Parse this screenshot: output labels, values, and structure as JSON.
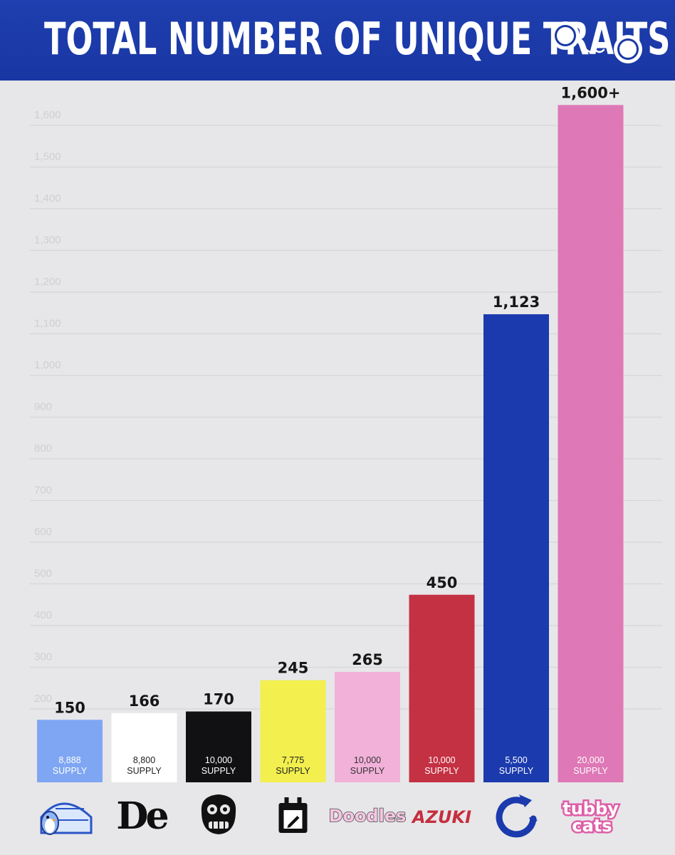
{
  "header": {
    "title": "TOTAL NUMBER OF UNIQUE TRAITS",
    "logo_icon": "tubby-eyes-logo-icon"
  },
  "colors": {
    "header_bg": "#1b39a6",
    "page_bg": "#e7e7e9",
    "gridline": "#d6d6da",
    "tick_text": "#cfcfd3"
  },
  "chart_data": {
    "type": "bar",
    "title": "TOTAL NUMBER OF UNIQUE TRAITS",
    "xlabel": "",
    "ylabel": "",
    "ylim": [
      0,
      1600
    ],
    "yticks": [
      200,
      300,
      400,
      500,
      600,
      700,
      800,
      900,
      1000,
      1100,
      1200,
      1300,
      1400,
      1500,
      1600
    ],
    "ytick_labels": [
      "200",
      "300",
      "400",
      "500",
      "600",
      "700",
      "800",
      "900",
      "1,000",
      "1,100",
      "1,200",
      "1,300",
      "1,400",
      "1,500",
      "1,600"
    ],
    "grid": true,
    "bars": [
      {
        "value": 150,
        "label": "150",
        "supply": "8,888",
        "supply_word": "SUPPLY",
        "color": "#7fa6f2",
        "text_color": "#ffffff",
        "icon": "igloo-penguin-icon"
      },
      {
        "value": 166,
        "label": "166",
        "supply": "8,800",
        "supply_word": "SUPPLY",
        "color": "#ffffff",
        "text_color": "#222222",
        "icon": "de-logo-icon"
      },
      {
        "value": 170,
        "label": "170",
        "supply": "10,000",
        "supply_word": "SUPPLY",
        "color": "#111113",
        "text_color": "#ffffff",
        "icon": "ape-skull-icon"
      },
      {
        "value": 245,
        "label": "245",
        "supply": "7,775",
        "supply_word": "SUPPLY",
        "color": "#f2ef4e",
        "text_color": "#222222",
        "icon": "pen-badge-icon"
      },
      {
        "value": 265,
        "label": "265",
        "supply": "10,000",
        "supply_word": "SUPPLY",
        "color": "#f2b1d9",
        "text_color": "#333333",
        "icon": "doodles-wordmark-icon",
        "icon_text": "Doodles"
      },
      {
        "value": 450,
        "label": "450",
        "supply": "10,000",
        "supply_word": "SUPPLY",
        "color": "#c43142",
        "text_color": "#ffffff",
        "icon": "azuki-wordmark-icon",
        "icon_text": "AZUKI"
      },
      {
        "value": 1123,
        "label": "1,123",
        "supply": "5,500",
        "supply_word": "SUPPLY",
        "color": "#1b3aad",
        "text_color": "#ffffff",
        "icon": "dragon-ring-icon"
      },
      {
        "value": 1625,
        "label": "1,600+",
        "supply": "20,000",
        "supply_word": "SUPPLY",
        "color": "#de78b6",
        "text_color": "#ffffff",
        "icon": "tubby-cats-wordmark-icon",
        "icon_text": "tubby cats"
      }
    ]
  }
}
